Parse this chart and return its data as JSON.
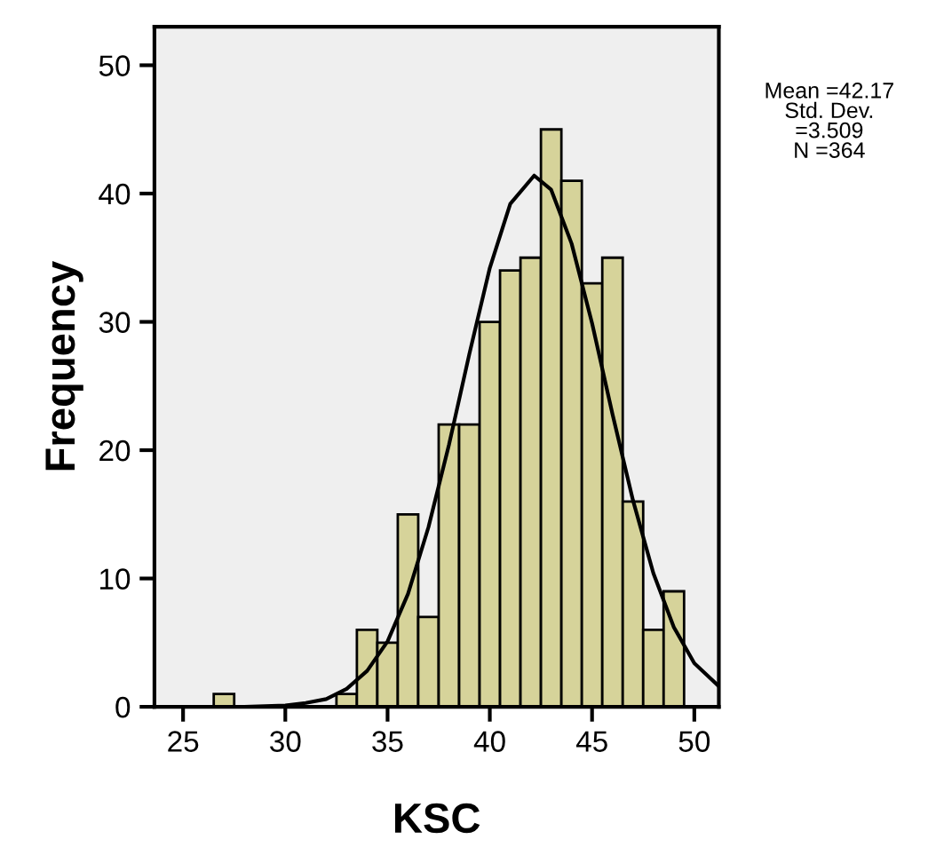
{
  "chart_data": {
    "type": "histogram",
    "xlabel": "KSC",
    "ylabel": "Frequency",
    "bins": [
      26.5,
      27.5,
      28.5,
      29.5,
      30.5,
      31.5,
      32.5,
      33.5,
      34.5,
      35.5,
      36.5,
      37.5,
      38.5,
      39.5,
      40.5,
      41.5,
      42.5,
      43.5,
      44.5,
      45.5,
      46.5,
      47.5,
      48.5,
      49.5
    ],
    "values": [
      1,
      0,
      0,
      0,
      0,
      0,
      1,
      6,
      5,
      15,
      7,
      22,
      22,
      30,
      34,
      35,
      45,
      41,
      33,
      35,
      16,
      6,
      9
    ],
    "color": "#d6d39a",
    "series": [
      {
        "type": "line",
        "color": "#000000",
        "x": [
          24,
          28,
          30,
          31,
          32,
          33,
          34,
          35,
          36,
          37,
          38,
          39,
          40,
          41,
          42.17,
          43,
          44,
          45,
          46,
          47,
          48,
          49,
          50,
          51.2
        ],
        "values": [
          0,
          0,
          0.1,
          0.3,
          0.6,
          1.4,
          2.8,
          5.1,
          8.8,
          14,
          20.4,
          27.5,
          34.2,
          39.2,
          41.4,
          40.3,
          36.1,
          29.9,
          22.8,
          16.1,
          10.4,
          6.2,
          3.4,
          1.6
        ]
      }
    ],
    "xlim": [
      23.6,
      51.2
    ],
    "xticks": [
      25,
      30,
      35,
      40,
      45,
      50
    ],
    "ylim": [
      0,
      53
    ],
    "yticks": [
      0,
      10,
      20,
      30,
      40,
      50
    ],
    "grid": false,
    "legend": false,
    "annotations": [
      "Mean =42.17\nStd. Dev.\n=3.509\nN =364"
    ]
  }
}
